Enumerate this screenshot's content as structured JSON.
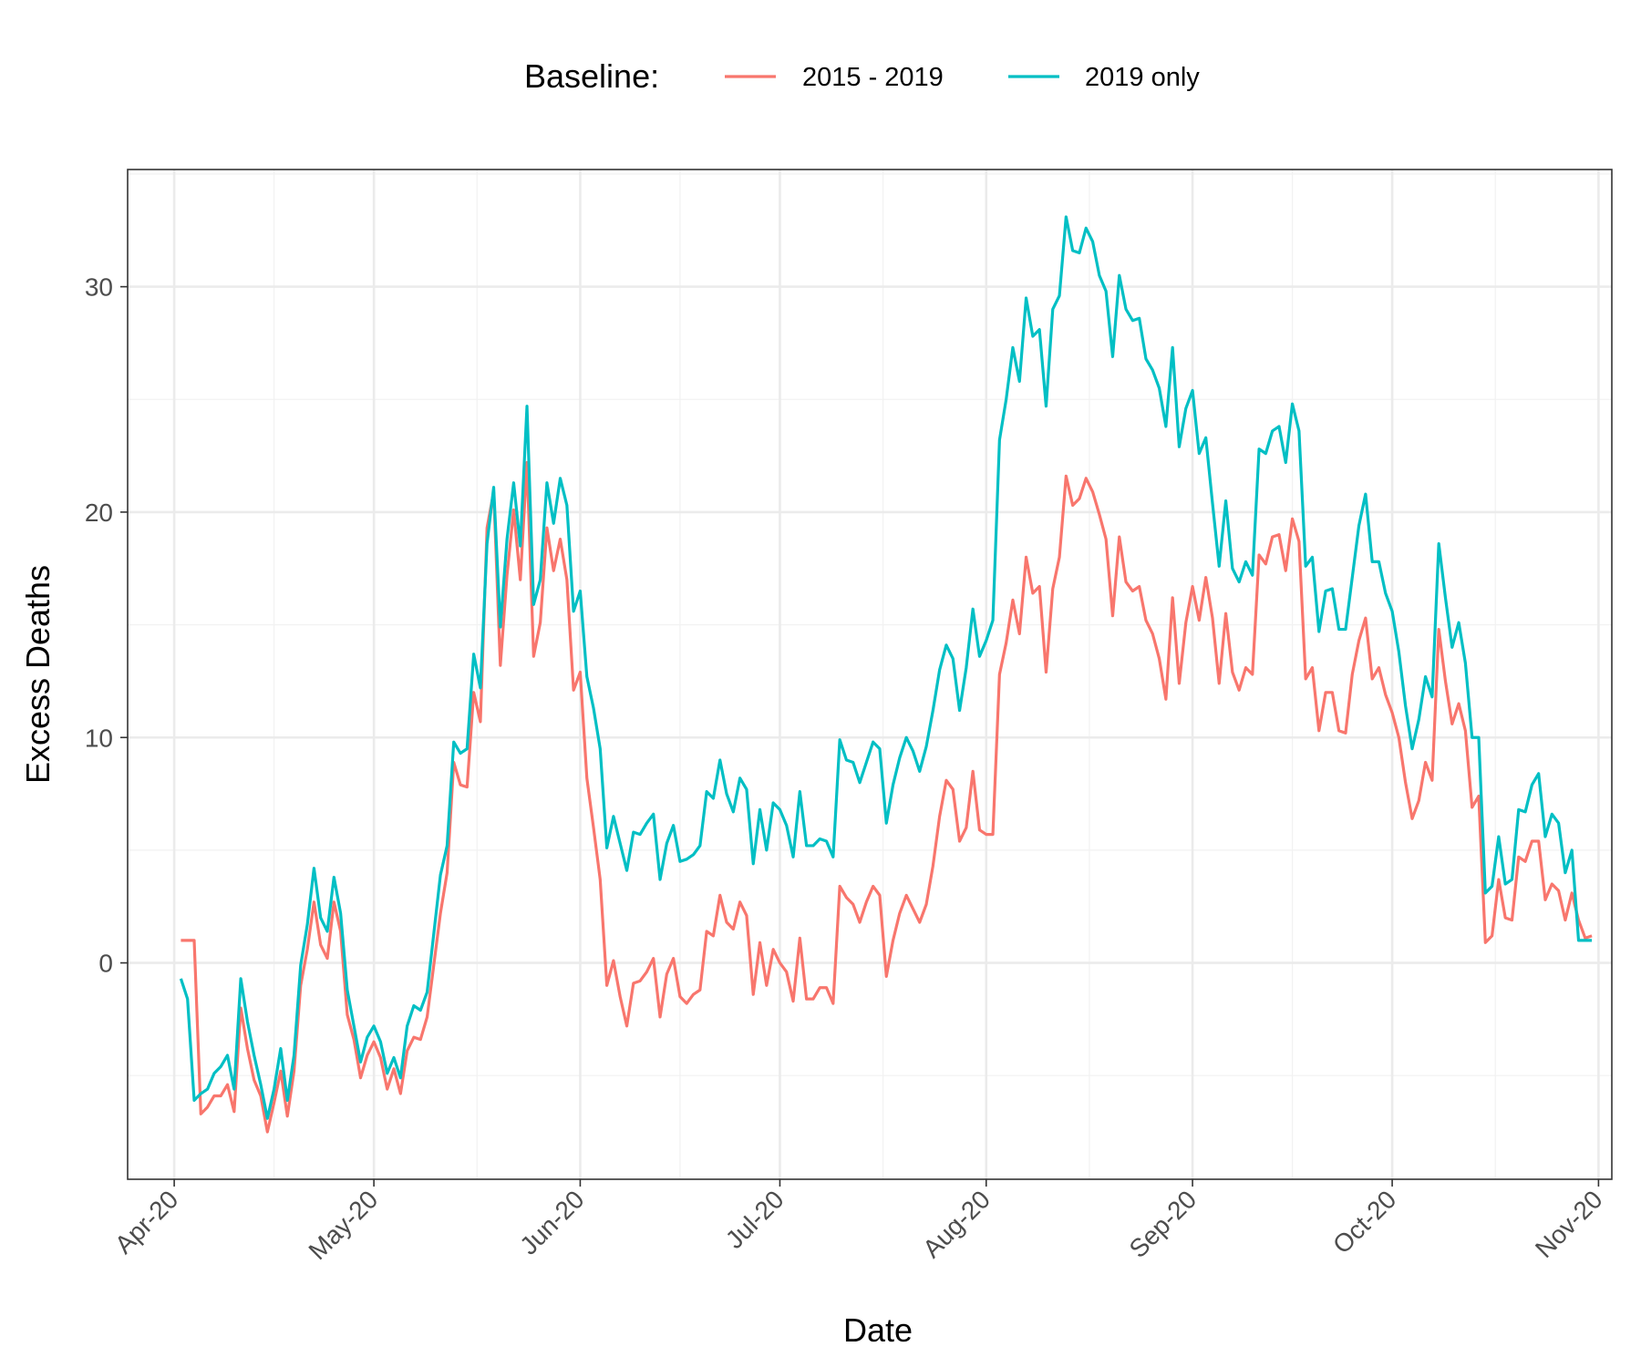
{
  "chart_data": {
    "type": "line",
    "xlabel": "Date",
    "ylabel": "Excess Deaths",
    "x_ticks": [
      {
        "date": "2020-04-01",
        "label": "Apr-20"
      },
      {
        "date": "2020-05-01",
        "label": "May-20"
      },
      {
        "date": "2020-06-01",
        "label": "Jun-20"
      },
      {
        "date": "2020-07-01",
        "label": "Jul-20"
      },
      {
        "date": "2020-08-01",
        "label": "Aug-20"
      },
      {
        "date": "2020-09-01",
        "label": "Sep-20"
      },
      {
        "date": "2020-10-01",
        "label": "Oct-20"
      },
      {
        "date": "2020-11-01",
        "label": "Nov-20"
      }
    ],
    "y_ticks": [
      0,
      10,
      20,
      30
    ],
    "ylim": [
      -9.6,
      35.2
    ],
    "xlim": [
      "2020-03-25",
      "2020-11-03"
    ],
    "grid": true,
    "legend": {
      "title": "Baseline:",
      "position": "top"
    },
    "x_start": "2020-04-02",
    "series": [
      {
        "name": "2015 - 2019",
        "color": "#F8766D",
        "values": [
          1,
          1,
          1,
          -6.7,
          -6.4,
          -5.9,
          -5.9,
          -5.4,
          -6.6,
          -2,
          -3.8,
          -5.2,
          -5.9,
          -7.5,
          -6.2,
          -4.8,
          -6.8,
          -4.8,
          -1,
          0.6,
          2.7,
          0.8,
          0.2,
          2.7,
          1.4,
          -2.3,
          -3.4,
          -5.1,
          -4.1,
          -3.5,
          -4.2,
          -5.6,
          -4.7,
          -5.8,
          -3.9,
          -3.3,
          -3.4,
          -2.4,
          -0.1,
          2.2,
          4,
          8.9,
          7.9,
          7.8,
          12,
          10.7,
          19.3,
          20.9,
          13.2,
          17.2,
          20.1,
          17,
          22.2,
          13.6,
          15.1,
          19.3,
          17.4,
          18.8,
          17,
          12.1,
          12.9,
          8.2,
          6,
          3.7,
          -1,
          0.1,
          -1.5,
          -2.8,
          -0.9,
          -0.8,
          -0.4,
          0.2,
          -2.4,
          -0.5,
          0.2,
          -1.5,
          -1.8,
          -1.4,
          -1.2,
          1.4,
          1.2,
          3,
          1.8,
          1.5,
          2.7,
          2.1,
          -1.4,
          0.9,
          -1,
          0.6,
          0,
          -0.4,
          -1.7,
          1.1,
          -1.6,
          -1.6,
          -1.1,
          -1.1,
          -1.8,
          3.4,
          2.9,
          2.6,
          1.8,
          2.7,
          3.4,
          3,
          -0.6,
          1,
          2.2,
          3,
          2.4,
          1.8,
          2.6,
          4.3,
          6.5,
          8.1,
          7.7,
          5.4,
          6,
          8.5,
          5.9,
          5.7,
          5.7,
          12.8,
          14.2,
          16.1,
          14.6,
          18,
          16.4,
          16.7,
          12.9,
          16.6,
          18,
          21.6,
          20.3,
          20.6,
          21.5,
          20.9,
          19.9,
          18.8,
          15.4,
          18.9,
          16.9,
          16.5,
          16.7,
          15.2,
          14.6,
          13.5,
          11.7,
          16.2,
          12.4,
          15.1,
          16.7,
          15.2,
          17.1,
          15.3,
          12.4,
          15.5,
          12.9,
          12.1,
          13.1,
          12.8,
          18.1,
          17.7,
          18.9,
          19,
          17.4,
          19.7,
          18.7,
          12.6,
          13.1,
          10.3,
          12,
          12,
          10.3,
          10.2,
          12.8,
          14.3,
          15.3,
          12.6,
          13.1,
          11.9,
          11.1,
          10,
          8,
          6.4,
          7.2,
          8.9,
          8.1,
          14.8,
          12.5,
          10.6,
          11.5,
          10.3,
          6.9,
          7.4,
          0.9,
          1.2,
          3.7,
          2,
          1.9,
          4.7,
          4.5,
          5.4,
          5.4,
          2.8,
          3.5,
          3.2,
          1.9,
          3.1,
          1.9,
          1.1,
          1.2
        ]
      },
      {
        "name": "2019 only",
        "color": "#00BFC4",
        "values": [
          -0.7,
          -1.6,
          -6.1,
          -5.8,
          -5.6,
          -4.9,
          -4.6,
          -4.1,
          -5.6,
          -0.7,
          -2.6,
          -4.1,
          -5.4,
          -6.9,
          -5.6,
          -3.8,
          -6.1,
          -4.1,
          -0.1,
          1.7,
          4.2,
          2,
          1.4,
          3.8,
          2.2,
          -1.2,
          -2.8,
          -4.4,
          -3.3,
          -2.8,
          -3.5,
          -4.9,
          -4.2,
          -5.1,
          -2.8,
          -1.9,
          -2.1,
          -1.3,
          1.3,
          3.9,
          5.2,
          9.8,
          9.3,
          9.5,
          13.7,
          12.2,
          18.6,
          21.1,
          14.9,
          18.8,
          21.3,
          18.5,
          24.7,
          15.9,
          17,
          21.3,
          19.5,
          21.5,
          20.3,
          15.6,
          16.5,
          12.7,
          11.3,
          9.5,
          5.1,
          6.5,
          5.3,
          4.1,
          5.8,
          5.7,
          6.2,
          6.6,
          3.7,
          5.3,
          6.1,
          4.5,
          4.6,
          4.8,
          5.2,
          7.6,
          7.3,
          9,
          7.5,
          6.7,
          8.2,
          7.7,
          4.4,
          6.8,
          5,
          7.1,
          6.8,
          6.1,
          4.7,
          7.6,
          5.2,
          5.2,
          5.5,
          5.4,
          4.7,
          9.9,
          9,
          8.9,
          8,
          8.9,
          9.8,
          9.5,
          6.2,
          7.9,
          9.1,
          10,
          9.4,
          8.5,
          9.6,
          11.2,
          13,
          14.1,
          13.5,
          11.2,
          13.1,
          15.7,
          13.6,
          14.3,
          15.2,
          23.2,
          25,
          27.3,
          25.8,
          29.5,
          27.8,
          28.1,
          24.7,
          29,
          29.6,
          33.1,
          31.6,
          31.5,
          32.6,
          32,
          30.5,
          29.8,
          26.9,
          30.5,
          29,
          28.5,
          28.6,
          26.8,
          26.3,
          25.5,
          23.8,
          27.3,
          22.9,
          24.6,
          25.4,
          22.6,
          23.3,
          20.4,
          17.6,
          20.5,
          17.5,
          16.9,
          17.8,
          17.2,
          22.8,
          22.6,
          23.6,
          23.8,
          22.2,
          24.8,
          23.6,
          17.6,
          18,
          14.7,
          16.5,
          16.6,
          14.8,
          14.8,
          17.1,
          19.4,
          20.8,
          17.8,
          17.8,
          16.4,
          15.6,
          13.8,
          11.4,
          9.5,
          10.8,
          12.7,
          11.8,
          18.6,
          16.2,
          14,
          15.1,
          13.3,
          10,
          10,
          3.1,
          3.4,
          5.6,
          3.5,
          3.7,
          6.8,
          6.7,
          7.9,
          8.4,
          5.6,
          6.6,
          6.2,
          4,
          5,
          1,
          1,
          1
        ]
      }
    ]
  }
}
